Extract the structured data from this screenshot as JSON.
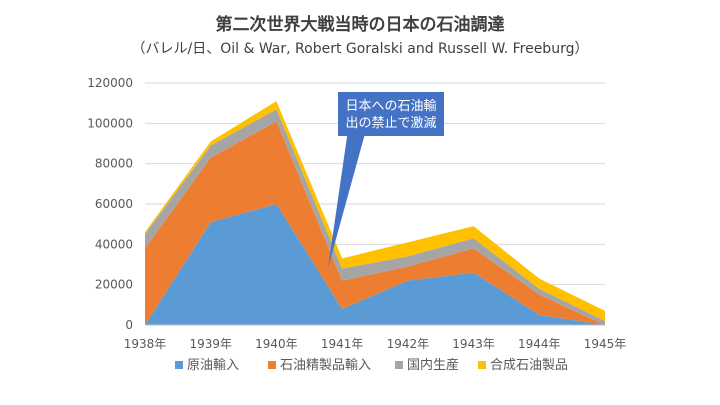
{
  "chart_data": {
    "type": "area",
    "stacked": true,
    "title": "第二次世界大戦当時の日本の石油調達",
    "subtitle": "（バレル/日、Oil & War, Robert Goralski and Russell W. Freeburg）",
    "categories": [
      "1938年",
      "1939年",
      "1940年",
      "1941年",
      "1942年",
      "1943年",
      "1944年",
      "1945年"
    ],
    "series": [
      {
        "name": "原油輸入",
        "color": "#5b9bd5",
        "values": [
          0,
          51000,
          60000,
          8000,
          22000,
          26000,
          5000,
          0
        ]
      },
      {
        "name": "石油精製品輸入",
        "color": "#ed7d31",
        "values": [
          38000,
          32000,
          41000,
          14000,
          7000,
          12000,
          10000,
          0
        ]
      },
      {
        "name": "国内生産",
        "color": "#a5a5a5",
        "values": [
          7000,
          6000,
          6000,
          6000,
          5000,
          5000,
          3000,
          2000
        ]
      },
      {
        "name": "合成石油製品",
        "color": "#ffc000",
        "values": [
          1000,
          2000,
          4000,
          5000,
          7000,
          6000,
          5000,
          5000
        ]
      }
    ],
    "ylim": [
      0,
      120000
    ],
    "yticks": [
      0,
      20000,
      40000,
      60000,
      80000,
      100000,
      120000
    ],
    "grid": true,
    "legend": "bottom",
    "annotation": {
      "lines": [
        "日本への石油輸",
        "出の禁止で激減"
      ],
      "color": "#4472c4"
    }
  }
}
